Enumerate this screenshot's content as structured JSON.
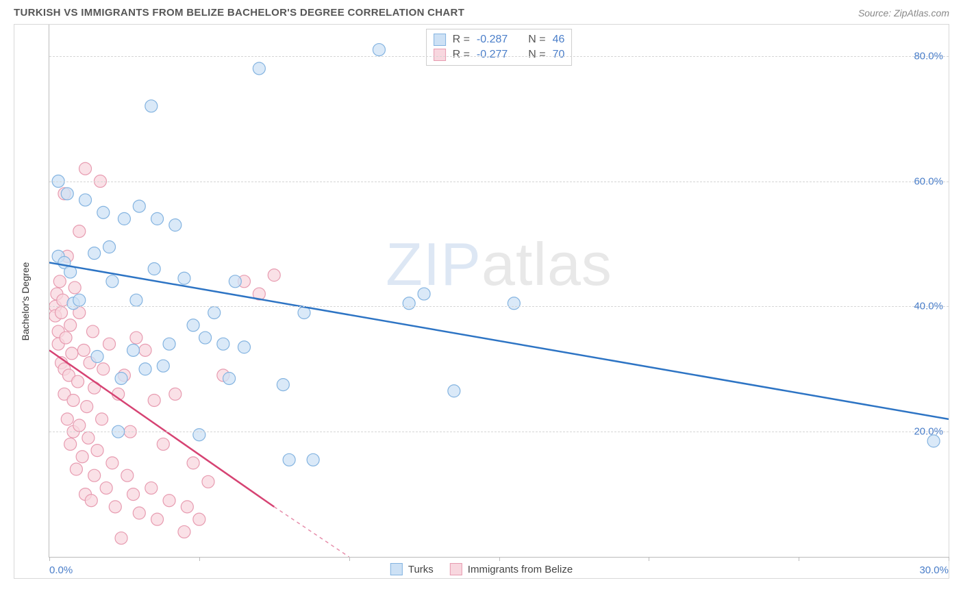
{
  "header": {
    "title": "TURKISH VS IMMIGRANTS FROM BELIZE BACHELOR'S DEGREE CORRELATION CHART",
    "source_prefix": "Source: ",
    "source_name": "ZipAtlas.com"
  },
  "watermark": {
    "zip": "ZIP",
    "atlas": "atlas"
  },
  "chart": {
    "type": "scatter",
    "y_axis_label": "Bachelor's Degree",
    "xlim": [
      0,
      30
    ],
    "ylim": [
      0,
      85
    ],
    "y_ticks": [
      20,
      40,
      60,
      80
    ],
    "y_tick_labels": [
      "20.0%",
      "40.0%",
      "60.0%",
      "80.0%"
    ],
    "x_ticks": [
      0,
      5,
      10,
      15,
      20,
      25,
      30
    ],
    "x_tick_labels": [
      "0.0%",
      "",
      "",
      "",
      "",
      "",
      "30.0%"
    ],
    "grid_color": "#d5d5d5",
    "background_color": "#ffffff",
    "marker_radius": 9,
    "marker_stroke_width": 1.2,
    "line_width": 2.5,
    "series": [
      {
        "name": "Turks",
        "fill": "#cde1f5",
        "stroke": "#83b3e0",
        "line_color": "#2d74c4",
        "r_value": "-0.287",
        "n_value": "46",
        "trend": {
          "x1": 0,
          "y1": 47,
          "x2": 30,
          "y2": 22,
          "dash_from_x": 30
        },
        "points": [
          [
            0.3,
            60
          ],
          [
            0.3,
            48
          ],
          [
            0.5,
            47
          ],
          [
            0.6,
            58
          ],
          [
            0.7,
            45.5
          ],
          [
            0.8,
            40.5
          ],
          [
            1.0,
            41
          ],
          [
            1.2,
            57
          ],
          [
            1.5,
            48.5
          ],
          [
            1.6,
            32
          ],
          [
            1.8,
            55
          ],
          [
            2.0,
            49.5
          ],
          [
            2.1,
            44
          ],
          [
            2.3,
            20
          ],
          [
            2.4,
            28.5
          ],
          [
            2.5,
            54
          ],
          [
            2.8,
            33
          ],
          [
            2.9,
            41
          ],
          [
            3.0,
            56
          ],
          [
            3.2,
            30
          ],
          [
            3.4,
            72
          ],
          [
            3.5,
            46
          ],
          [
            3.6,
            54
          ],
          [
            3.8,
            30.5
          ],
          [
            4.0,
            34
          ],
          [
            4.2,
            53
          ],
          [
            4.5,
            44.5
          ],
          [
            4.8,
            37
          ],
          [
            5.0,
            19.5
          ],
          [
            5.2,
            35
          ],
          [
            5.5,
            39
          ],
          [
            5.8,
            34
          ],
          [
            6.0,
            28.5
          ],
          [
            6.2,
            44
          ],
          [
            6.5,
            33.5
          ],
          [
            7.0,
            78
          ],
          [
            7.8,
            27.5
          ],
          [
            8.0,
            15.5
          ],
          [
            8.5,
            39
          ],
          [
            8.8,
            15.5
          ],
          [
            11.0,
            81
          ],
          [
            12.0,
            40.5
          ],
          [
            12.5,
            42
          ],
          [
            13.5,
            26.5
          ],
          [
            15.5,
            40.5
          ],
          [
            29.5,
            18.5
          ]
        ]
      },
      {
        "name": "Immigrants from Belize",
        "fill": "#f8d7df",
        "stroke": "#e79bb0",
        "line_color": "#d64373",
        "r_value": "-0.277",
        "n_value": "70",
        "trend": {
          "x1": 0,
          "y1": 33,
          "x2": 7.5,
          "y2": 8,
          "dash_from_x": 7.5,
          "dash_to_x": 10,
          "dash_to_y": 0
        },
        "points": [
          [
            0.2,
            40
          ],
          [
            0.2,
            38.5
          ],
          [
            0.25,
            42
          ],
          [
            0.3,
            36
          ],
          [
            0.3,
            34
          ],
          [
            0.35,
            44
          ],
          [
            0.4,
            31
          ],
          [
            0.4,
            39
          ],
          [
            0.45,
            41
          ],
          [
            0.5,
            30
          ],
          [
            0.5,
            26
          ],
          [
            0.5,
            58
          ],
          [
            0.55,
            35
          ],
          [
            0.6,
            22
          ],
          [
            0.6,
            48
          ],
          [
            0.65,
            29
          ],
          [
            0.7,
            37
          ],
          [
            0.7,
            18
          ],
          [
            0.75,
            32.5
          ],
          [
            0.8,
            25
          ],
          [
            0.8,
            20
          ],
          [
            0.85,
            43
          ],
          [
            0.9,
            14
          ],
          [
            0.95,
            28
          ],
          [
            1.0,
            39
          ],
          [
            1.0,
            21
          ],
          [
            1.0,
            52
          ],
          [
            1.1,
            16
          ],
          [
            1.15,
            33
          ],
          [
            1.2,
            10
          ],
          [
            1.2,
            62
          ],
          [
            1.25,
            24
          ],
          [
            1.3,
            19
          ],
          [
            1.35,
            31
          ],
          [
            1.4,
            9
          ],
          [
            1.45,
            36
          ],
          [
            1.5,
            13
          ],
          [
            1.5,
            27
          ],
          [
            1.6,
            17
          ],
          [
            1.7,
            60
          ],
          [
            1.75,
            22
          ],
          [
            1.8,
            30
          ],
          [
            1.9,
            11
          ],
          [
            2.0,
            34
          ],
          [
            2.1,
            15
          ],
          [
            2.2,
            8
          ],
          [
            2.3,
            26
          ],
          [
            2.4,
            3
          ],
          [
            2.5,
            29
          ],
          [
            2.6,
            13
          ],
          [
            2.7,
            20
          ],
          [
            2.8,
            10
          ],
          [
            2.9,
            35
          ],
          [
            3.0,
            7
          ],
          [
            3.2,
            33
          ],
          [
            3.4,
            11
          ],
          [
            3.5,
            25
          ],
          [
            3.6,
            6
          ],
          [
            3.8,
            18
          ],
          [
            4.0,
            9
          ],
          [
            4.2,
            26
          ],
          [
            4.5,
            4
          ],
          [
            4.6,
            8
          ],
          [
            4.8,
            15
          ],
          [
            5.0,
            6
          ],
          [
            5.3,
            12
          ],
          [
            5.8,
            29
          ],
          [
            6.5,
            44
          ],
          [
            7.0,
            42
          ],
          [
            7.5,
            45
          ]
        ]
      }
    ]
  },
  "stats_box": {
    "r_label": "R =",
    "n_label": "N ="
  },
  "bottom_legend": {
    "items": [
      {
        "label": "Turks",
        "fill": "#cde1f5",
        "stroke": "#83b3e0"
      },
      {
        "label": "Immigrants from Belize",
        "fill": "#f8d7df",
        "stroke": "#e79bb0"
      }
    ]
  }
}
